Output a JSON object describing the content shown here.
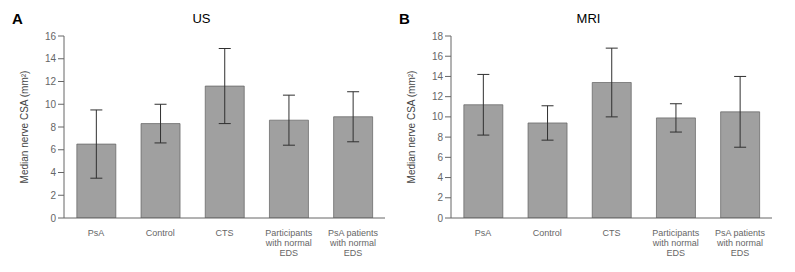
{
  "chart_data": [
    {
      "type": "bar",
      "title": "US",
      "annotations": [
        "A"
      ],
      "categories": [
        "PsA",
        "Control",
        "CTS",
        "Participants\nwith normal\nEDS",
        "PsA patients\nwith normal\nEDS"
      ],
      "values": [
        6.5,
        8.3,
        11.6,
        8.6,
        8.9
      ],
      "errors_upper": [
        3.0,
        1.7,
        3.3,
        2.2,
        2.2
      ],
      "errors_lower": [
        3.0,
        1.7,
        3.3,
        2.2,
        2.2
      ],
      "ylim": [
        0,
        16
      ],
      "yticks": [
        0,
        2,
        4,
        6,
        8,
        10,
        12,
        14,
        16
      ],
      "ylabel": "Median nerve CSA (mm²)",
      "color": "#a0a0a0",
      "grid": false
    },
    {
      "type": "bar",
      "title": "MRI",
      "annotations": [
        "B"
      ],
      "categories": [
        "PsA",
        "Control",
        "CTS",
        "Participants\nwith normal\nEDS",
        "PsA patients\nwith normal\nEDS"
      ],
      "values": [
        11.2,
        9.4,
        13.4,
        9.9,
        10.5
      ],
      "errors_upper": [
        3.0,
        1.7,
        3.4,
        1.4,
        3.5
      ],
      "errors_lower": [
        3.0,
        1.7,
        3.4,
        1.4,
        3.5
      ],
      "ylim": [
        0,
        18
      ],
      "yticks": [
        0,
        2,
        4,
        6,
        8,
        10,
        12,
        14,
        16,
        18
      ],
      "ylabel": "Median nerve CSA (mm²)",
      "color": "#a0a0a0",
      "grid": false
    }
  ]
}
